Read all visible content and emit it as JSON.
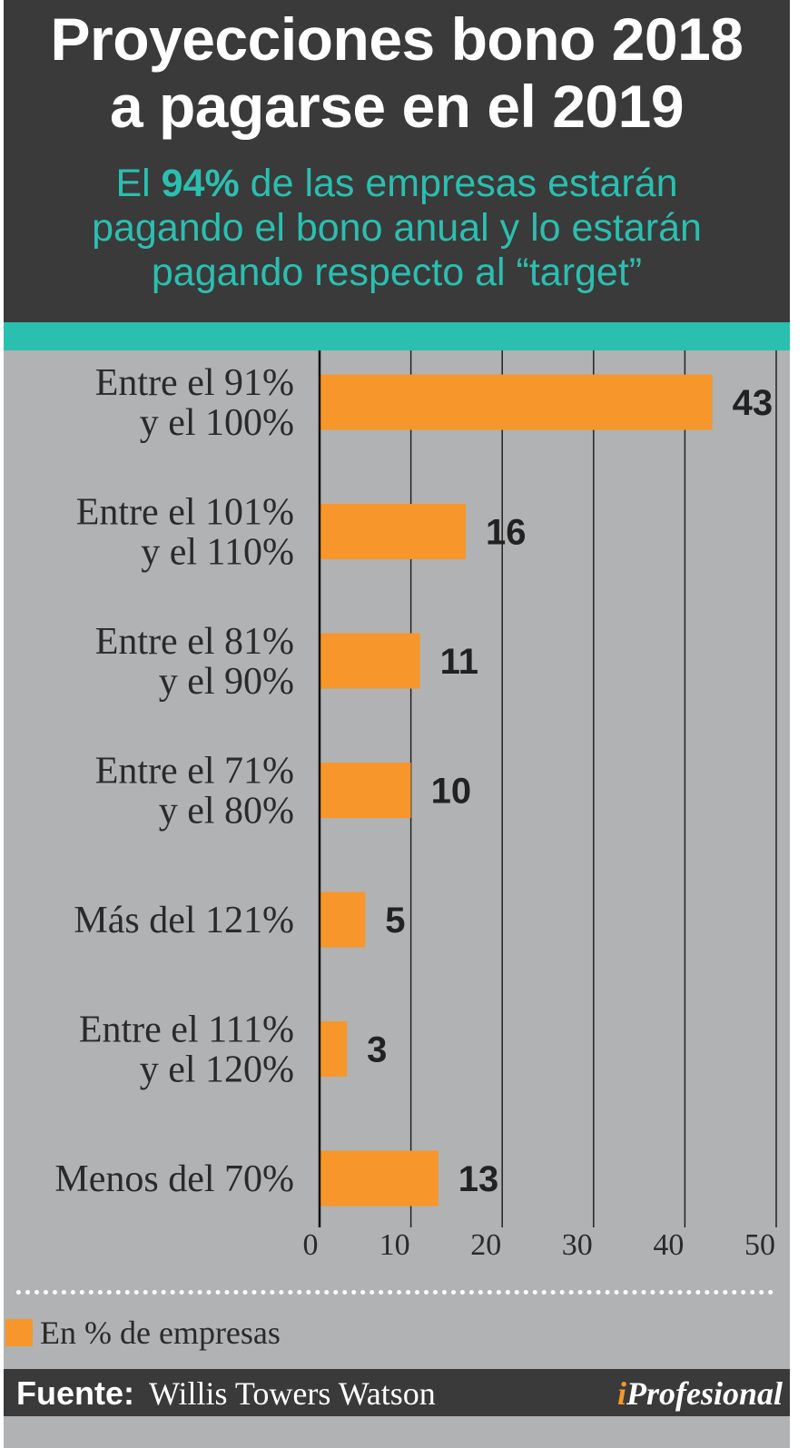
{
  "header": {
    "title_line1": "Proyecciones bono 2018",
    "title_line2": "a pagarse en el 2019",
    "subtitle_pre": "El ",
    "subtitle_highlight": "94%",
    "subtitle_line1_post": " de las empresas estarán",
    "subtitle_line2": "pagando el bono anual  y lo estarán",
    "subtitle_line3": "pagando respecto al “target”"
  },
  "chart_data": {
    "type": "bar",
    "orientation": "horizontal",
    "categories": [
      [
        "Entre el 91%",
        "y el 100%"
      ],
      [
        "Entre el 101%",
        "y el 110%"
      ],
      [
        "Entre el 81%",
        "y el 90%"
      ],
      [
        "Entre el 71%",
        "y el 80%"
      ],
      [
        "Más del 121%"
      ],
      [
        "Entre el 111%",
        "y el 120%"
      ],
      [
        "Menos del 70%"
      ]
    ],
    "values": [
      43,
      16,
      11,
      10,
      5,
      3,
      13
    ],
    "xlim": [
      0,
      50
    ],
    "xticks": [
      0,
      10,
      20,
      30,
      40,
      50
    ],
    "grid": "vertical",
    "bar_color": "#f7962a",
    "grid_color": "#222222"
  },
  "legend": {
    "label": "En % de empresas",
    "color": "#f7962a"
  },
  "footer": {
    "source_key": "Fuente:",
    "source_value": "Willis Towers Watson",
    "logo_i": "i",
    "logo_rest": "Profesional"
  },
  "colors": {
    "header_bg": "#3a3a3a",
    "accent_teal": "#2bbfb0",
    "panel_bg": "#b1b2b3"
  }
}
